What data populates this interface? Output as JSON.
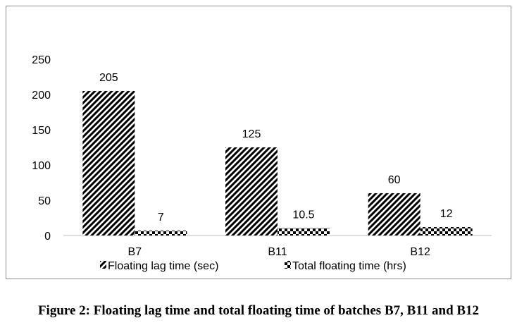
{
  "chart_data": {
    "type": "bar",
    "categories": [
      "B7",
      "B11",
      "B12"
    ],
    "series": [
      {
        "name": "Floating lag time (sec)",
        "values": [
          205,
          125,
          60
        ],
        "labels": [
          "205",
          "125",
          "60"
        ],
        "pattern": "diagonal-hatch"
      },
      {
        "name": "Total floating time (hrs)",
        "values": [
          7,
          10.5,
          12
        ],
        "labels": [
          "7",
          "10.5",
          "12"
        ],
        "pattern": "dotted-check"
      }
    ],
    "title": "",
    "xlabel": "",
    "ylabel": "",
    "ylim": [
      0,
      250
    ],
    "yticks": [
      0,
      50,
      100,
      150,
      200,
      250
    ],
    "grid": false,
    "legend_position": "bottom"
  },
  "caption": "Figure 2: Floating lag time and total floating time of batches B7, B11 and B12"
}
